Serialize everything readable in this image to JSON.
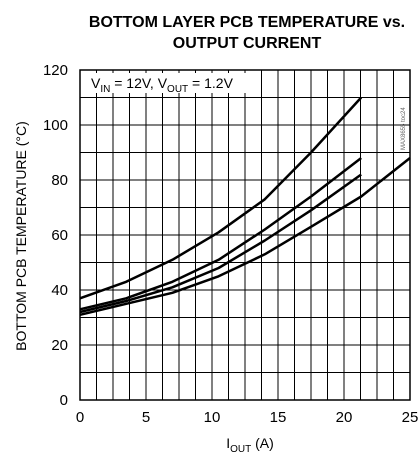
{
  "chart_data": {
    "type": "line",
    "title_line1": "BOTTOM LAYER PCB TEMPERATURE vs.",
    "title_line2": "OUTPUT CURRENT",
    "xlabel": {
      "main": "I",
      "sub": "OUT",
      "unit": " (A)"
    },
    "ylabel": "BOTTOM PCB TEMPERATURE (°C)",
    "xlim": [
      0,
      25
    ],
    "ylim": [
      0,
      120
    ],
    "x_ticks": [
      0,
      5,
      10,
      15,
      20,
      25
    ],
    "y_ticks": [
      0,
      20,
      40,
      60,
      80,
      100,
      120
    ],
    "x_minor_step": 1.25,
    "y_minor_step": 10,
    "grid": true,
    "annotation": {
      "v": "V",
      "in_sub": "IN",
      "in_val": " = 12V, ",
      "out_sub": "OUT",
      "out_val": " = 1.2V"
    },
    "watermark": "MAX8655 toc24",
    "series": [
      {
        "x": [
          0,
          3.5,
          7,
          10.5,
          14,
          17.5,
          21.3
        ],
        "values": [
          37,
          43,
          51,
          61,
          73,
          90,
          110
        ]
      },
      {
        "x": [
          0,
          3.5,
          7,
          10.5,
          14,
          17.5,
          21.3
        ],
        "values": [
          33,
          37,
          43,
          51,
          62,
          74,
          88
        ]
      },
      {
        "x": [
          0,
          3.5,
          7,
          10.5,
          14,
          17.5,
          21.3
        ],
        "values": [
          32,
          36,
          41,
          48,
          58,
          69,
          82
        ]
      },
      {
        "x": [
          0,
          3.5,
          7,
          10.5,
          14,
          17.5,
          21.3,
          25
        ],
        "values": [
          31,
          35,
          39,
          45,
          53,
          63,
          74,
          88
        ]
      }
    ],
    "colors": {
      "line": "#000000",
      "grid": "#000000",
      "background": "#ffffff"
    }
  }
}
